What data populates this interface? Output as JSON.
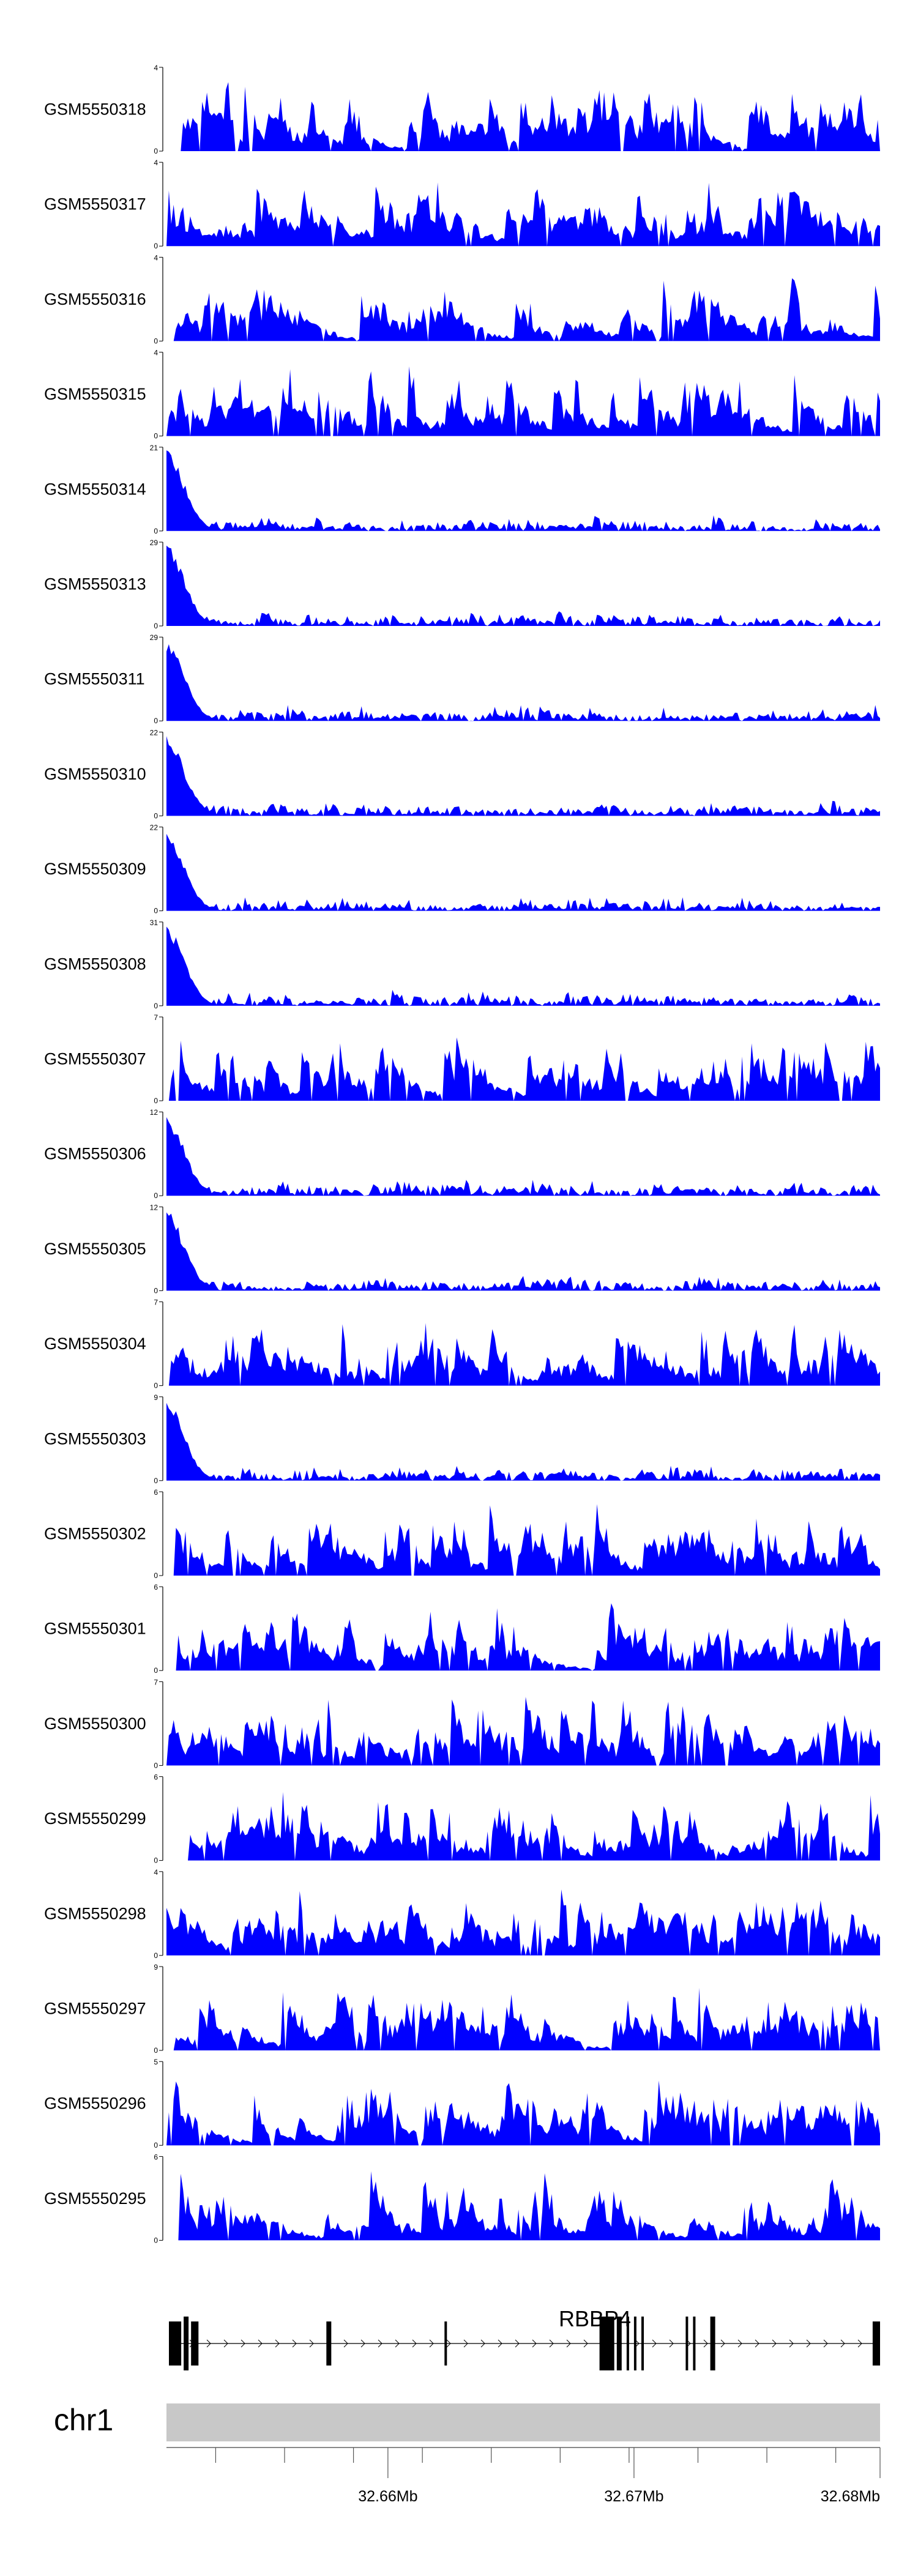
{
  "colors": {
    "coverage": "#0000FF",
    "ideogram": "#C8C8C8",
    "gene": "#000000"
  },
  "chart_data": {
    "type": "area",
    "region": {
      "chromosome": "chr1",
      "start": 32.651,
      "end": 32.68,
      "unit": "Mb"
    },
    "tracks": [
      {
        "name": "GSM5550318",
        "ymax": 4,
        "profile": "uniform"
      },
      {
        "name": "GSM5550317",
        "ymax": 4,
        "profile": "uniform"
      },
      {
        "name": "GSM5550316",
        "ymax": 4,
        "profile": "uniform"
      },
      {
        "name": "GSM5550315",
        "ymax": 4,
        "profile": "uniform"
      },
      {
        "name": "GSM5550314",
        "ymax": 21,
        "profile": "5prime-peak"
      },
      {
        "name": "GSM5550313",
        "ymax": 29,
        "profile": "5prime-peak"
      },
      {
        "name": "GSM5550311",
        "ymax": 29,
        "profile": "5prime-peak"
      },
      {
        "name": "GSM5550310",
        "ymax": 22,
        "profile": "5prime-peak"
      },
      {
        "name": "GSM5550309",
        "ymax": 22,
        "profile": "5prime-peak"
      },
      {
        "name": "GSM5550308",
        "ymax": 31,
        "profile": "5prime-peak"
      },
      {
        "name": "GSM5550307",
        "ymax": 7,
        "profile": "uniform"
      },
      {
        "name": "GSM5550306",
        "ymax": 12,
        "profile": "5prime-peak"
      },
      {
        "name": "GSM5550305",
        "ymax": 12,
        "profile": "5prime-peak"
      },
      {
        "name": "GSM5550304",
        "ymax": 7,
        "profile": "uniform"
      },
      {
        "name": "GSM5550303",
        "ymax": 9,
        "profile": "5prime-peak"
      },
      {
        "name": "GSM5550302",
        "ymax": 6,
        "profile": "uniform"
      },
      {
        "name": "GSM5550301",
        "ymax": 6,
        "profile": "uniform"
      },
      {
        "name": "GSM5550300",
        "ymax": 7,
        "profile": "uniform"
      },
      {
        "name": "GSM5550299",
        "ymax": 6,
        "profile": "uniform"
      },
      {
        "name": "GSM5550298",
        "ymax": 4,
        "profile": "uniform"
      },
      {
        "name": "GSM5550297",
        "ymax": 9,
        "profile": "uniform"
      },
      {
        "name": "GSM5550296",
        "ymax": 5,
        "profile": "uniform"
      },
      {
        "name": "GSM5550295",
        "ymax": 6,
        "profile": "uniform"
      }
    ],
    "gene": {
      "name": "RBBP4",
      "strand": "+",
      "exons_mb": [
        [
          32.6511,
          32.6516
        ],
        [
          32.6517,
          32.6519
        ],
        [
          32.652,
          32.6523
        ],
        [
          32.6575,
          32.6577
        ],
        [
          32.6623,
          32.6624
        ],
        [
          32.6686,
          32.6692
        ],
        [
          32.6693,
          32.6695
        ],
        [
          32.6697,
          32.6698
        ],
        [
          32.67,
          32.6701
        ],
        [
          32.6703,
          32.6704
        ],
        [
          32.6721,
          32.6722
        ],
        [
          32.6724,
          32.6725
        ],
        [
          32.6731,
          32.6733
        ],
        [
          32.6797,
          32.68
        ]
      ]
    },
    "axis": {
      "chromosome_label": "chr1",
      "tick_labels": [
        {
          "value": 32.66,
          "label": "32.66Mb"
        },
        {
          "value": 32.67,
          "label": "32.67Mb"
        },
        {
          "value": 32.68,
          "label": "32.68Mb"
        }
      ],
      "minor_ticks": [
        32.653,
        32.6558,
        32.6586,
        32.6614,
        32.6642,
        32.667,
        32.6698,
        32.6726,
        32.6754,
        32.6782
      ]
    }
  }
}
